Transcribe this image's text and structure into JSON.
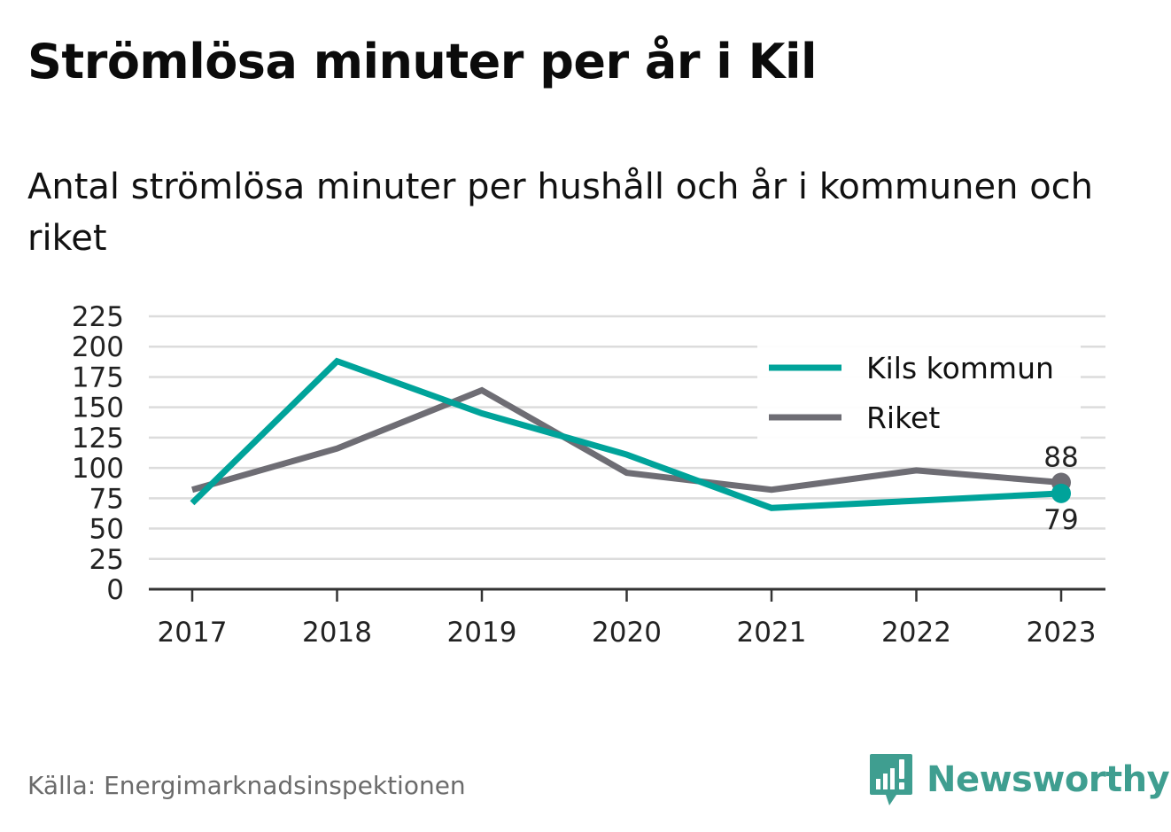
{
  "header": {
    "title": "Strömlösa minuter per år i Kil",
    "subtitle": "Antal strömlösa minuter per hushåll och år i kommunen och riket"
  },
  "footer": {
    "source": "Källa: Energimarknadsinspektionen",
    "logo_text": "Newsworthy",
    "logo_icon": "bar-chart-speech-bubble-icon"
  },
  "colors": {
    "kil": "#00a39a",
    "riket": "#6e6d74",
    "grid": "#dcdcdc",
    "axis": "#333333",
    "logo": "#3f9e90"
  },
  "chart_data": {
    "type": "line",
    "title": "",
    "xlabel": "",
    "ylabel": "",
    "categories": [
      "2017",
      "2018",
      "2019",
      "2020",
      "2021",
      "2022",
      "2023"
    ],
    "y_ticks": [
      "0",
      "25",
      "50",
      "75",
      "100",
      "125",
      "150",
      "175",
      "200",
      "225"
    ],
    "ylim": [
      0,
      225
    ],
    "grid": true,
    "legend_position": "top-right",
    "series": [
      {
        "name": "Kils kommun",
        "color": "#00a39a",
        "values": [
          71,
          188,
          145,
          111,
          67,
          73,
          79
        ],
        "end_label": "79"
      },
      {
        "name": "Riket",
        "color": "#6e6d74",
        "values": [
          82,
          116,
          164,
          96,
          82,
          98,
          88
        ],
        "end_label": "88"
      }
    ]
  }
}
